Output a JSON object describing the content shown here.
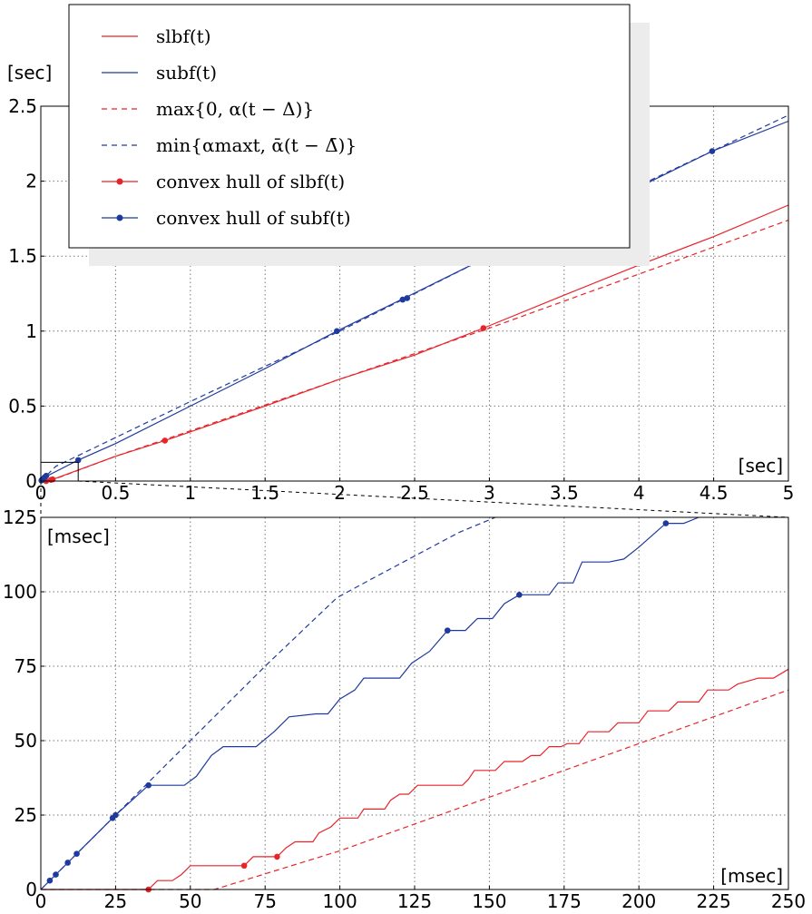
{
  "chart_data": [
    {
      "id": "top",
      "type": "line",
      "xlim": [
        0,
        5
      ],
      "ylim": [
        0,
        2.5
      ],
      "x_ticks": [
        "0",
        "0.5",
        "1",
        "1.5",
        "2",
        "2.5",
        "3",
        "3.5",
        "4",
        "4.5",
        "5"
      ],
      "y_ticks": [
        "0",
        "0.5",
        "1",
        "1.5",
        "2",
        "2.5"
      ],
      "x_unit": "[sec]",
      "y_unit": "[sec]",
      "grid": true,
      "series": [
        {
          "name": "slbf(t)",
          "color": "#e8242a",
          "style": "solid",
          "points": [
            [
              0,
              0
            ],
            [
              0.035,
              0
            ],
            [
              0.08,
              0.011
            ],
            [
              0.5,
              0.165
            ],
            [
              0.83,
              0.27
            ],
            [
              1.5,
              0.5
            ],
            [
              2.0,
              0.68
            ],
            [
              2.5,
              0.84
            ],
            [
              2.96,
              1.02
            ],
            [
              3.5,
              1.24
            ],
            [
              4.0,
              1.44
            ],
            [
              4.5,
              1.63
            ],
            [
              5.0,
              1.84
            ]
          ]
        },
        {
          "name": "subf(t)",
          "color": "#1f3a9e",
          "style": "solid",
          "points": [
            [
              0,
              0
            ],
            [
              0.004,
              0.004
            ],
            [
              0.025,
              0.025
            ],
            [
              0.25,
              0.14
            ],
            [
              0.5,
              0.25
            ],
            [
              1.0,
              0.5
            ],
            [
              1.5,
              0.75
            ],
            [
              1.98,
              1.0
            ],
            [
              2.43,
              1.22
            ],
            [
              3.0,
              1.5
            ],
            [
              3.5,
              1.74
            ],
            [
              4.0,
              1.96
            ],
            [
              4.49,
              2.2
            ],
            [
              5.0,
              2.4
            ]
          ]
        },
        {
          "name": "max{0, α(t − Δ)}",
          "color": "#e8242a",
          "style": "dashed",
          "points": [
            [
              0,
              0
            ],
            [
              0.058,
              0
            ],
            [
              0.5,
              0.165
            ],
            [
              1.0,
              0.335
            ],
            [
              2.0,
              0.68
            ],
            [
              3.0,
              1.02
            ],
            [
              4.0,
              1.38
            ],
            [
              5.0,
              1.74
            ]
          ]
        },
        {
          "name": "min{α^max t, ᾱ(t − Δ̄)}",
          "color": "#1f3a9e",
          "style": "dashed",
          "points": [
            [
              0,
              0
            ],
            [
              0.1,
              0.098
            ],
            [
              0.5,
              0.29
            ],
            [
              1.0,
              0.53
            ],
            [
              2.0,
              1.0
            ],
            [
              3.0,
              1.5
            ],
            [
              4.0,
              1.97
            ],
            [
              5.0,
              2.44
            ]
          ]
        },
        {
          "name": "convex hull of slbf(t)",
          "color": "#e8242a",
          "style": "markers",
          "points": [
            [
              0.035,
              0
            ],
            [
              0.068,
              0.008
            ],
            [
              0.079,
              0.011
            ],
            [
              0.83,
              0.27
            ],
            [
              2.96,
              1.02
            ]
          ]
        },
        {
          "name": "convex hull of subf(t)",
          "color": "#1f3a9e",
          "style": "markers",
          "points": [
            [
              0.004,
              0.004
            ],
            [
              0.009,
              0.009
            ],
            [
              0.012,
              0.012
            ],
            [
              0.025,
              0.025
            ],
            [
              0.036,
              0.035
            ],
            [
              0.25,
              0.14
            ],
            [
              1.98,
              1.0
            ],
            [
              2.42,
              1.21
            ],
            [
              2.45,
              1.22
            ],
            [
              4.49,
              2.2
            ]
          ]
        }
      ],
      "zoom_box": {
        "x": [
          0,
          0.25
        ],
        "y": [
          0,
          0.125
        ]
      }
    },
    {
      "id": "bottom",
      "type": "line",
      "xlim": [
        0,
        250
      ],
      "ylim": [
        0,
        125
      ],
      "x_ticks": [
        "0",
        "25",
        "50",
        "75",
        "100",
        "125",
        "150",
        "175",
        "200",
        "225",
        "250"
      ],
      "y_ticks": [
        "0",
        "25",
        "50",
        "75",
        "100",
        "125"
      ],
      "x_unit": "[msec]",
      "y_unit": "[msec]",
      "grid": true,
      "series": [
        {
          "name": "slbf(t)",
          "color": "#e8242a",
          "style": "solid",
          "points": [
            [
              0,
              0
            ],
            [
              36,
              0
            ],
            [
              36,
              0
            ],
            [
              39,
              3
            ],
            [
              44,
              3
            ],
            [
              47,
              5
            ],
            [
              50,
              8
            ],
            [
              68,
              8
            ],
            [
              71,
              11
            ],
            [
              78,
              11
            ],
            [
              79,
              11
            ],
            [
              82,
              14
            ],
            [
              85,
              16
            ],
            [
              91,
              16
            ],
            [
              93,
              19
            ],
            [
              97,
              21
            ],
            [
              100,
              24
            ],
            [
              106,
              24
            ],
            [
              108,
              27
            ],
            [
              115,
              27
            ],
            [
              117,
              30
            ],
            [
              120,
              32
            ],
            [
              123,
              32
            ],
            [
              126,
              35
            ],
            [
              141,
              35
            ],
            [
              143,
              37
            ],
            [
              145,
              40
            ],
            [
              152,
              40
            ],
            [
              155,
              43
            ],
            [
              161,
              43
            ],
            [
              164,
              45
            ],
            [
              167,
              45
            ],
            [
              170,
              48
            ],
            [
              174,
              48
            ],
            [
              176,
              49
            ],
            [
              180,
              49
            ],
            [
              183,
              53
            ],
            [
              190,
              53
            ],
            [
              193,
              56
            ],
            [
              200,
              56
            ],
            [
              203,
              60
            ],
            [
              210,
              60
            ],
            [
              213,
              63
            ],
            [
              220,
              63
            ],
            [
              223,
              67
            ],
            [
              230,
              67
            ],
            [
              233,
              69
            ],
            [
              240,
              71
            ],
            [
              245,
              71
            ],
            [
              250,
              74
            ]
          ]
        },
        {
          "name": "subf(t)",
          "color": "#1f3a9e",
          "style": "solid",
          "points": [
            [
              0,
              0
            ],
            [
              3,
              3
            ],
            [
              5,
              5
            ],
            [
              9,
              9
            ],
            [
              12,
              12
            ],
            [
              24,
              24
            ],
            [
              25,
              25
            ],
            [
              36,
              35
            ],
            [
              40,
              35
            ],
            [
              48,
              35
            ],
            [
              52,
              38
            ],
            [
              57,
              45
            ],
            [
              61,
              48
            ],
            [
              72,
              48
            ],
            [
              78,
              53
            ],
            [
              83,
              58
            ],
            [
              92,
              59
            ],
            [
              96,
              59
            ],
            [
              100,
              64
            ],
            [
              105,
              67
            ],
            [
              108,
              71
            ],
            [
              120,
              71
            ],
            [
              124,
              76
            ],
            [
              130,
              80
            ],
            [
              136,
              87
            ],
            [
              142,
              87
            ],
            [
              146,
              91
            ],
            [
              151,
              91
            ],
            [
              155,
              96
            ],
            [
              160,
              99
            ],
            [
              170,
              99
            ],
            [
              173,
              103
            ],
            [
              178,
              103
            ],
            [
              181,
              110
            ],
            [
              190,
              110
            ],
            [
              195,
              111
            ],
            [
              200,
              115
            ],
            [
              209,
              123
            ],
            [
              215,
              123
            ],
            [
              220,
              125
            ]
          ]
        },
        {
          "name": "max{0, α(t − Δ)}",
          "color": "#e8242a",
          "style": "dashed",
          "points": [
            [
              0,
              0
            ],
            [
              58,
              0
            ],
            [
              100,
              13
            ],
            [
              150,
              31
            ],
            [
              200,
              49
            ],
            [
              250,
              67
            ]
          ]
        },
        {
          "name": "min{α^max t, ᾱ(t − Δ̄)}",
          "color": "#1f3a9e",
          "style": "dashed",
          "points": [
            [
              0,
              0
            ],
            [
              36,
              36
            ],
            [
              50,
              50
            ],
            [
              75,
              75
            ],
            [
              99,
              98
            ],
            [
              110,
              104
            ],
            [
              125,
              112
            ],
            [
              140,
              120
            ],
            [
              152,
              125
            ]
          ]
        },
        {
          "name": "convex hull of slbf(t)",
          "color": "#e8242a",
          "style": "markers",
          "points": [
            [
              36,
              0
            ],
            [
              68,
              8
            ],
            [
              79,
              11
            ]
          ]
        },
        {
          "name": "convex hull of subf(t)",
          "color": "#1f3a9e",
          "style": "markers",
          "points": [
            [
              3,
              3
            ],
            [
              5,
              5
            ],
            [
              9,
              9
            ],
            [
              12,
              12
            ],
            [
              24,
              24
            ],
            [
              25,
              25
            ],
            [
              36,
              35
            ],
            [
              136,
              87
            ],
            [
              160,
              99
            ],
            [
              209,
              123
            ]
          ]
        }
      ]
    }
  ],
  "legend": {
    "entries": [
      {
        "label": "slbf(t)",
        "color": "#e8242a",
        "style": "solid"
      },
      {
        "label": "subf(t)",
        "color": "#1f3a9e",
        "style": "solid"
      },
      {
        "label": "max{0, α(t − Δ)}",
        "color": "#e8242a",
        "style": "dashed"
      },
      {
        "label": "min{αmaxt, ᾱ(t − Δ̄)}",
        "color": "#1f3a9e",
        "style": "dashed"
      },
      {
        "label": "convex hull of slbf(t)",
        "color": "#e8242a",
        "style": "markers"
      },
      {
        "label": "convex hull of subf(t)",
        "color": "#1f3a9e",
        "style": "markers"
      }
    ]
  }
}
